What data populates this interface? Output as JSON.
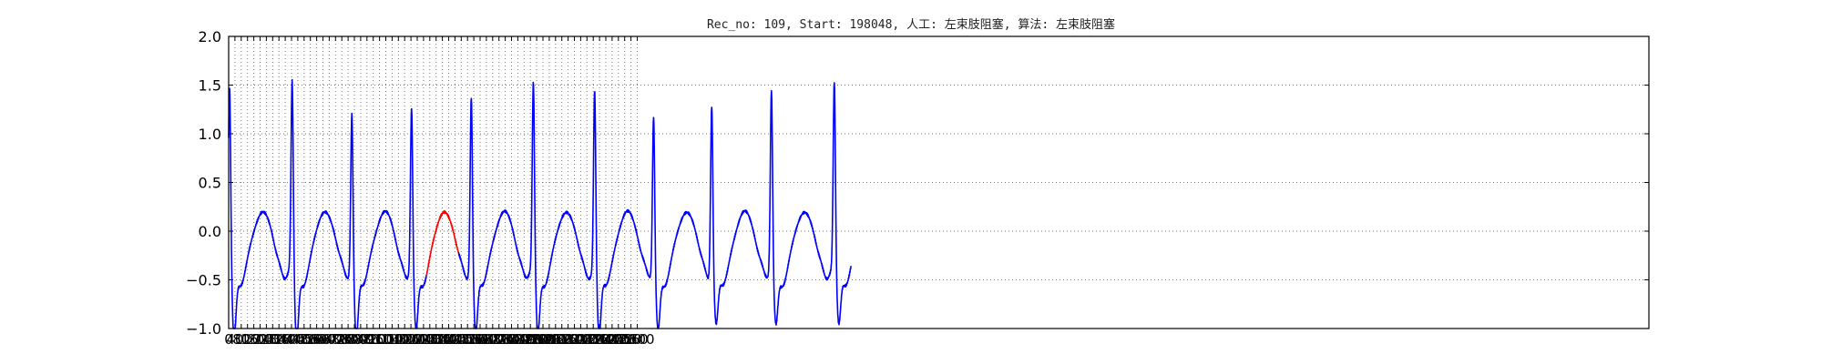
{
  "chart_data": {
    "type": "line",
    "title": "Rec_no: 109, Start: 198048, 人工: 左束肢阻塞, 算法: 左束肢阻塞",
    "xlabel": "",
    "ylabel": "",
    "xlim": [
      0,
      3600
    ],
    "ylim": [
      -1.0,
      2.0
    ],
    "yticks": [
      -1.0,
      -0.5,
      0.0,
      0.5,
      1.0,
      1.5,
      2.0
    ],
    "ytick_labels": [
      "−1.0",
      "−0.5",
      "0.0",
      "0.5",
      "1.0",
      "1.5",
      "2.0"
    ],
    "xticks": [
      0,
      40,
      80,
      120,
      160,
      200,
      240,
      280,
      320,
      360,
      400,
      440,
      480,
      520,
      560,
      600,
      640,
      680,
      720,
      760,
      800,
      840,
      880,
      920,
      960,
      1000,
      1040,
      1080,
      1120,
      1160,
      1200,
      1240,
      1280,
      1320,
      1360,
      1400,
      1440,
      1480,
      1520,
      1560,
      1600,
      1640,
      1680,
      1720,
      1760,
      1800,
      1840,
      1880,
      1920,
      1960,
      2000,
      2040,
      2080,
      2120,
      2160,
      2200,
      2240,
      2280,
      2320,
      2360,
      2400,
      2440,
      2480,
      2520,
      2560,
      2600
    ],
    "grid": true,
    "grid_style": "dotted",
    "colors": {
      "normal": "#0000ff",
      "highlight": "#ff0000"
    },
    "highlight_range": [
      1260,
      1460
    ],
    "beats": [
      {
        "r": 12,
        "peak": 1.52,
        "s": -0.95
      },
      {
        "r": 410,
        "peak": 1.62,
        "s": -1.0
      },
      {
        "r": 790,
        "peak": 1.36,
        "s": -0.93
      },
      {
        "r": 1170,
        "peak": 1.4,
        "s": -0.86
      },
      {
        "r": 1550,
        "peak": 1.53,
        "s": -0.88
      },
      {
        "r": 1945,
        "peak": 1.61,
        "s": -0.9
      },
      {
        "r": 2335,
        "peak": 1.56,
        "s": -0.93
      },
      {
        "r": 2710,
        "peak": 1.34,
        "s": -0.85
      },
      {
        "r": 3080,
        "peak": 1.48,
        "s": -0.78
      },
      {
        "r": 3460,
        "peak": 1.58,
        "s": -0.8
      },
      {
        "r": 3860,
        "peak": 1.6,
        "s": -0.82
      }
    ],
    "signal_end": 3960
  }
}
